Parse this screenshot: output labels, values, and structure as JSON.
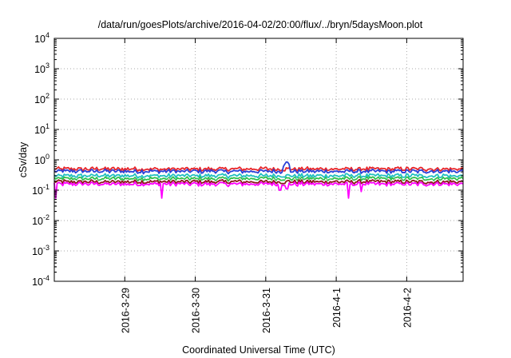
{
  "chart_data": {
    "type": "line",
    "title": "/data/run/goesPlots/archive/2016-04-02/20:00/flux/../bryn/5daysMoon.plot",
    "xlabel": "Coordinated Universal Time (UTC)",
    "ylabel": "cSv/day",
    "yscale": "log",
    "ylim": [
      0.0001,
      10000
    ],
    "xlim": [
      0,
      5.8
    ],
    "y_ticks": [
      {
        "base": "10",
        "exp": "4",
        "value": 10000
      },
      {
        "base": "10",
        "exp": "3",
        "value": 1000
      },
      {
        "base": "10",
        "exp": "2",
        "value": 100
      },
      {
        "base": "10",
        "exp": "1",
        "value": 10
      },
      {
        "base": "10",
        "exp": "0",
        "value": 1
      },
      {
        "base": "10",
        "exp": "-1",
        "value": 0.1
      },
      {
        "base": "10",
        "exp": "-2",
        "value": 0.01
      },
      {
        "base": "10",
        "exp": "-3",
        "value": 0.001
      },
      {
        "base": "10",
        "exp": "-4",
        "value": 0.0001
      }
    ],
    "x_ticks": [
      {
        "label": "2016-3-29",
        "value": 1
      },
      {
        "label": "2016-3-30",
        "value": 2
      },
      {
        "label": "2016-3-31",
        "value": 3
      },
      {
        "label": "2016-4-1",
        "value": 4
      },
      {
        "label": "2016-4-2",
        "value": 5
      }
    ],
    "grid": true,
    "series": [
      {
        "color": "#e8262a",
        "level": 0.5
      },
      {
        "color": "#2a3fd6",
        "level": 0.42
      },
      {
        "color": "#22c0c0",
        "level": 0.3
      },
      {
        "color": "#2fbf4a",
        "level": 0.24
      },
      {
        "color": "#ffffff",
        "level": 0.21
      },
      {
        "color": "#8b1a1a",
        "level": 0.19
      },
      {
        "color": "#ff00ff",
        "level": 0.16
      }
    ],
    "dips": [
      {
        "x": 0.02,
        "min": 0.055
      },
      {
        "x": 1.52,
        "min": 0.055
      },
      {
        "x": 3.2,
        "min": 0.1
      },
      {
        "x": 3.3,
        "min": 0.11
      },
      {
        "x": 4.18,
        "min": 0.055
      },
      {
        "x": 4.35,
        "min": 0.09
      }
    ]
  }
}
